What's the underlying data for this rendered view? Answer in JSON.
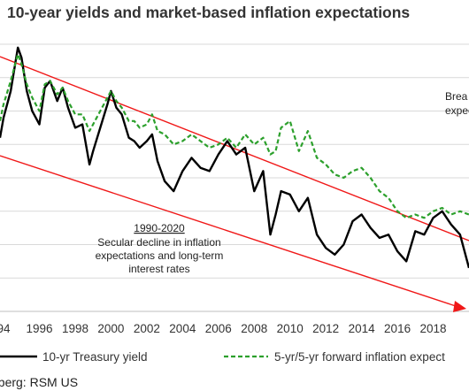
{
  "chart_data": {
    "type": "line",
    "title": "10-year yields and market-based inflation expectations",
    "xlabel": "",
    "ylabel": "",
    "x_ticks": [
      "94",
      "1996",
      "1998",
      "2000",
      "2002",
      "2004",
      "2006",
      "2008",
      "2010",
      "2012",
      "2014",
      "2016",
      "2018"
    ],
    "xlim": [
      1993.8,
      2020.0
    ],
    "ylim": [
      0,
      8
    ],
    "grid": "horizontal",
    "legend": "bottom",
    "series": [
      {
        "name": "10-yr Treasury yield",
        "color": "#000000",
        "style": "solid",
        "x": [
          1993.8,
          1994.0,
          1994.4,
          1994.8,
          1995.0,
          1995.3,
          1995.6,
          1996.0,
          1996.3,
          1996.6,
          1997.0,
          1997.3,
          1997.6,
          1998.0,
          1998.4,
          1998.8,
          1999.0,
          1999.4,
          1999.8,
          2000.0,
          2000.3,
          2000.6,
          2001.0,
          2001.3,
          2001.6,
          2002.0,
          2002.3,
          2002.6,
          2003.0,
          2003.5,
          2004.0,
          2004.5,
          2005.0,
          2005.5,
          2006.0,
          2006.5,
          2007.0,
          2007.5,
          2008.0,
          2008.5,
          2008.9,
          2009.2,
          2009.5,
          2010.0,
          2010.5,
          2011.0,
          2011.5,
          2012.0,
          2012.5,
          2013.0,
          2013.5,
          2014.0,
          2014.5,
          2015.0,
          2015.5,
          2016.0,
          2016.5,
          2017.0,
          2017.5,
          2018.0,
          2018.5,
          2019.0,
          2019.5,
          2020.0
        ],
        "values": [
          5.2,
          5.8,
          6.6,
          7.9,
          7.6,
          6.6,
          6.0,
          5.6,
          6.7,
          6.9,
          6.3,
          6.7,
          6.1,
          5.5,
          5.6,
          4.4,
          4.8,
          5.5,
          6.2,
          6.6,
          6.1,
          5.9,
          5.2,
          5.1,
          4.9,
          5.1,
          5.3,
          4.5,
          3.9,
          3.6,
          4.2,
          4.6,
          4.3,
          4.2,
          4.7,
          5.1,
          4.7,
          4.9,
          3.6,
          4.2,
          2.3,
          2.9,
          3.6,
          3.5,
          3.0,
          3.4,
          2.3,
          1.9,
          1.7,
          2.0,
          2.7,
          2.9,
          2.5,
          2.2,
          2.3,
          1.8,
          1.5,
          2.4,
          2.3,
          2.8,
          3.0,
          2.6,
          2.3,
          1.3
        ]
      },
      {
        "name": "5-yr/5-yr forward inflation expect",
        "color": "#2ca02c",
        "style": "dashed",
        "x": [
          1993.8,
          1994.0,
          1994.4,
          1994.8,
          1995.0,
          1995.3,
          1995.6,
          1996.0,
          1996.3,
          1996.6,
          1997.0,
          1997.3,
          1997.6,
          1998.0,
          1998.4,
          1998.8,
          1999.0,
          1999.4,
          1999.8,
          2000.0,
          2000.3,
          2000.6,
          2001.0,
          2001.3,
          2001.6,
          2002.0,
          2002.3,
          2002.6,
          2003.0,
          2003.5,
          2004.0,
          2004.5,
          2005.0,
          2005.5,
          2006.0,
          2006.5,
          2007.0,
          2007.5,
          2008.0,
          2008.5,
          2008.9,
          2009.2,
          2009.5,
          2010.0,
          2010.5,
          2011.0,
          2011.5,
          2012.0,
          2012.5,
          2013.0,
          2013.5,
          2014.0,
          2014.5,
          2015.0,
          2015.5,
          2016.0,
          2016.5,
          2017.0,
          2017.5,
          2018.0,
          2018.5,
          2019.0,
          2019.5,
          2020.0
        ],
        "values": [
          5.7,
          6.2,
          6.9,
          7.7,
          7.4,
          6.8,
          6.4,
          6.0,
          6.8,
          6.9,
          6.5,
          6.7,
          6.3,
          5.9,
          5.9,
          5.4,
          5.6,
          6.0,
          6.4,
          6.6,
          6.3,
          6.1,
          5.7,
          5.7,
          5.5,
          5.6,
          5.9,
          5.4,
          5.3,
          5.0,
          5.1,
          5.3,
          5.1,
          4.9,
          5.0,
          5.2,
          4.9,
          5.3,
          5.0,
          5.2,
          4.7,
          4.8,
          5.5,
          5.7,
          4.8,
          5.4,
          4.6,
          4.4,
          4.1,
          4.0,
          4.2,
          4.3,
          4.0,
          3.6,
          3.4,
          3.0,
          2.8,
          2.9,
          2.8,
          3.0,
          3.1,
          2.9,
          3.0,
          2.9
        ]
      }
    ],
    "annotations": {
      "period": "1990-2020",
      "body": [
        "Secular decline in inflation",
        "expectations and long-term",
        "interest rates"
      ],
      "right_partial": [
        "Brea",
        "expect"
      ]
    },
    "source": "nberg: RSM US"
  },
  "colors": {
    "channel": "#f01818",
    "grid": "#d9d9d9",
    "axis": "#bfbfbf"
  }
}
